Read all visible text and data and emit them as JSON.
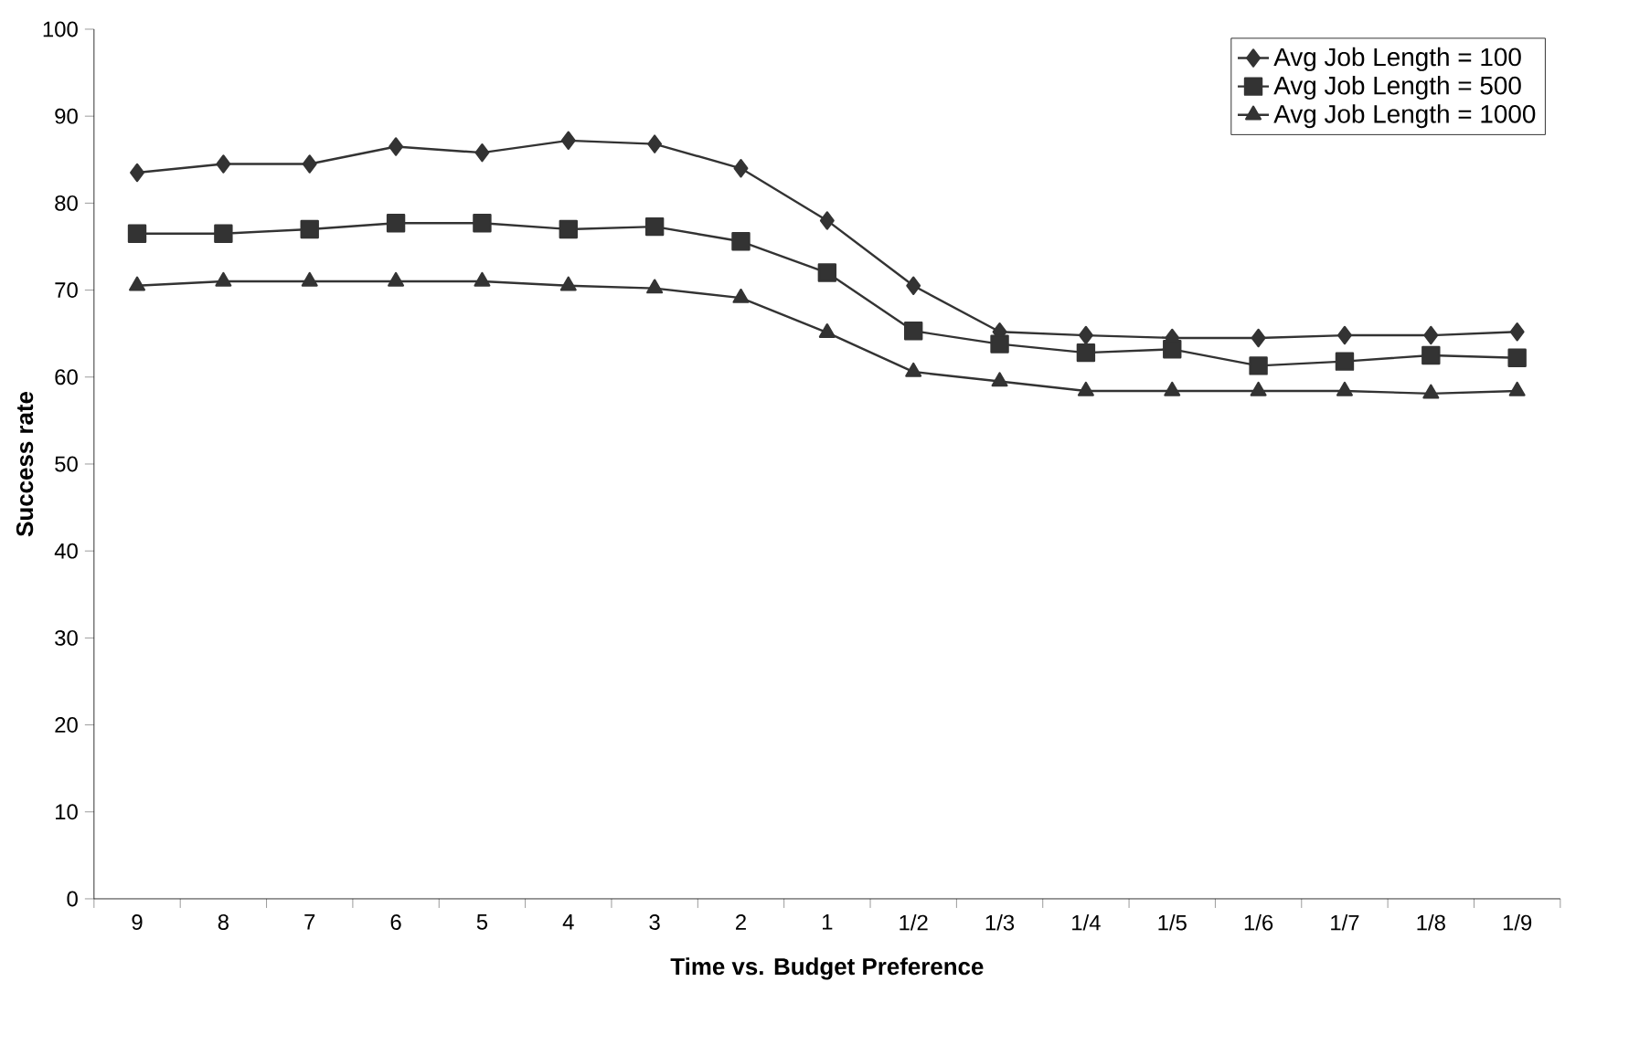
{
  "chart_data": {
    "type": "line",
    "xlabel": "Time vs. Budget Preference",
    "ylabel": "Success rate",
    "categories": [
      "9",
      "8",
      "7",
      "6",
      "5",
      "4",
      "3",
      "2",
      "1",
      "1/2",
      "1/3",
      "1/4",
      "1/5",
      "1/6",
      "1/7",
      "1/8",
      "1/9"
    ],
    "series": [
      {
        "name": "Avg Job Length = 100",
        "color": "#333333",
        "marker": "diamond",
        "values": [
          83.5,
          84.5,
          84.5,
          86.5,
          85.8,
          87.2,
          86.8,
          84,
          78,
          70.5,
          65.2,
          64.8,
          64.5,
          64.5,
          64.8,
          64.8,
          65.2
        ]
      },
      {
        "name": "Avg Job Length = 500",
        "color": "#333333",
        "marker": "square",
        "values": [
          76.5,
          76.5,
          77,
          77.7,
          77.7,
          77,
          77.3,
          75.6,
          72,
          65.3,
          63.8,
          62.8,
          63.2,
          61.3,
          61.8,
          62.5,
          62.2
        ]
      },
      {
        "name": "Avg Job Length = 1000",
        "color": "#333333",
        "marker": "triangle",
        "values": [
          70.5,
          71,
          71,
          71,
          71,
          70.5,
          70.2,
          69.1,
          65.1,
          60.6,
          59.5,
          58.4,
          58.4,
          58.4,
          58.4,
          58.1,
          58.4
        ]
      }
    ],
    "ylim": [
      0,
      100
    ],
    "yticks": [
      0,
      10,
      20,
      30,
      40,
      50,
      60,
      70,
      80,
      90,
      100
    ],
    "grid": false,
    "legend": "top right",
    "line_style": "solid"
  }
}
